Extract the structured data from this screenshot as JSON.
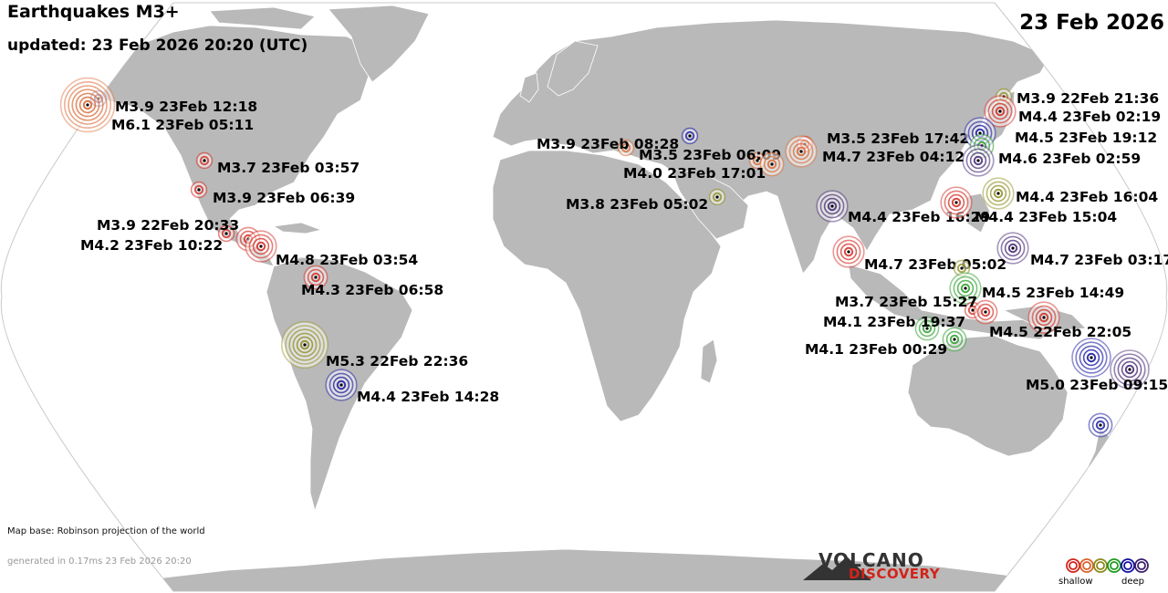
{
  "header": {
    "title": "Earthquakes M3+",
    "updated": "updated: 23 Feb 2026 20:20 (UTC)",
    "date": "23 Feb 2026"
  },
  "footer": {
    "map_base": "Map base: Robinson projection of the world",
    "generated": "generated in 0.17ms 23 Feb 2026 20:20",
    "brand_top": "VOLCANO",
    "brand_bottom": "DISCOVERY",
    "legend_shallow": "shallow",
    "legend_deep": "deep"
  },
  "colors": {
    "ocean": "#ffffff",
    "land": "#b9b9b9",
    "border": "#ffffff",
    "depth_shallow": "#d2231a",
    "depth_mid1": "#d9622a",
    "depth_mid2": "#8a8a1a",
    "depth_mid3": "#1f9a1f",
    "depth_mid4": "#1010a0",
    "depth_deep": "#3b1f6e"
  },
  "legend_depth_colors": [
    "#d2231a",
    "#d9622a",
    "#8a8a1a",
    "#1f9a1f",
    "#1010a0",
    "#3b1f6e"
  ],
  "quakes": [
    {
      "label": "M3.9 23Feb 12:18",
      "mag": 3.9,
      "color": "#3b1f6e"
    },
    {
      "label": "M6.1 23Feb 05:11",
      "mag": 6.1,
      "color": "#d9622a"
    },
    {
      "label": "M3.7 23Feb 03:57",
      "mag": 3.7,
      "color": "#d2231a"
    },
    {
      "label": "M3.9 23Feb 06:39",
      "mag": 3.9,
      "color": "#d2231a"
    },
    {
      "label": "M3.9 22Feb 20:33",
      "mag": 3.9,
      "color": "#d2231a"
    },
    {
      "label": "M4.2 23Feb 10:22",
      "mag": 4.2,
      "color": "#d2231a"
    },
    {
      "label": "M4.8 23Feb 03:54",
      "mag": 4.8,
      "color": "#d2231a"
    },
    {
      "label": "M4.3 23Feb 06:58",
      "mag": 4.3,
      "color": "#d2231a"
    },
    {
      "label": "M5.3 22Feb 22:36",
      "mag": 5.3,
      "color": "#8a8a1a"
    },
    {
      "label": "M4.4 23Feb 14:28",
      "mag": 4.4,
      "color": "#1010a0"
    },
    {
      "label": "M3.9 23Feb 08:28",
      "mag": 3.9,
      "color": "#d9622a"
    },
    {
      "label": "",
      "mag": 3.7,
      "color": "#1010a0"
    },
    {
      "label": "M3.5 23Feb 06:09",
      "mag": 3.5,
      "color": "#d9622a"
    },
    {
      "label": "M4.0 23Feb 17:01",
      "mag": 4.0,
      "color": "#d9622a"
    },
    {
      "label": "M3.8 23Feb 05:02",
      "mag": 3.8,
      "color": "#8a8a1a"
    },
    {
      "label": "M3.5 23Feb 17:42",
      "mag": 3.5,
      "color": "#d2231a"
    },
    {
      "label": "M4.7 23Feb 04:12",
      "mag": 4.7,
      "color": "#d9622a"
    },
    {
      "label": "M4.4 23Feb 16:29",
      "mag": 4.4,
      "color": "#3b1f6e"
    },
    {
      "label": "M4.4 23Feb 15:04",
      "mag": 4.4,
      "color": "#d2231a"
    },
    {
      "label": "M4.4 23Feb 16:04",
      "mag": 4.4,
      "color": "#8a8a1a"
    },
    {
      "label": "M3.9 22Feb 21:36",
      "mag": 3.9,
      "color": "#8a8a1a"
    },
    {
      "label": "M4.4 23Feb 02:19",
      "mag": 4.4,
      "color": "#d2231a"
    },
    {
      "label": "M4.5 23Feb 19:12",
      "mag": 4.5,
      "color": "#1010a0"
    },
    {
      "label": "",
      "mag": 4.2,
      "color": "#1f9a1f"
    },
    {
      "label": "M4.6 23Feb 02:59",
      "mag": 4.6,
      "color": "#3b1f6e"
    },
    {
      "label": "M4.7 23Feb 03:17",
      "mag": 4.7,
      "color": "#3b1f6e"
    },
    {
      "label": "M4.7 23Feb 05:02",
      "mag": 4.7,
      "color": "#d2231a"
    },
    {
      "label": "",
      "mag": 3.8,
      "color": "#8a8a1a"
    },
    {
      "label": "M4.5 23Feb 14:49",
      "mag": 4.5,
      "color": "#1f9a1f"
    },
    {
      "label": "M3.7 23Feb 15:27",
      "mag": 3.7,
      "color": "#d2231a"
    },
    {
      "label": "M4.1 23Feb 19:37",
      "mag": 4.1,
      "color": "#1f9a1f"
    },
    {
      "label": "M4.5 22Feb 22:05",
      "mag": 4.5,
      "color": "#d2231a"
    },
    {
      "label": "M4.1 23Feb 00:29",
      "mag": 4.1,
      "color": "#1f9a1f"
    },
    {
      "label": "",
      "mag": 4.3,
      "color": "#d2231a"
    },
    {
      "label": "",
      "mag": 5.0,
      "color": "#1010a0"
    },
    {
      "label": "M5.0 23Feb 09:15",
      "mag": 5.0,
      "color": "#3b1f6e"
    },
    {
      "label": "",
      "mag": 4.0,
      "color": "#1010a0"
    }
  ]
}
